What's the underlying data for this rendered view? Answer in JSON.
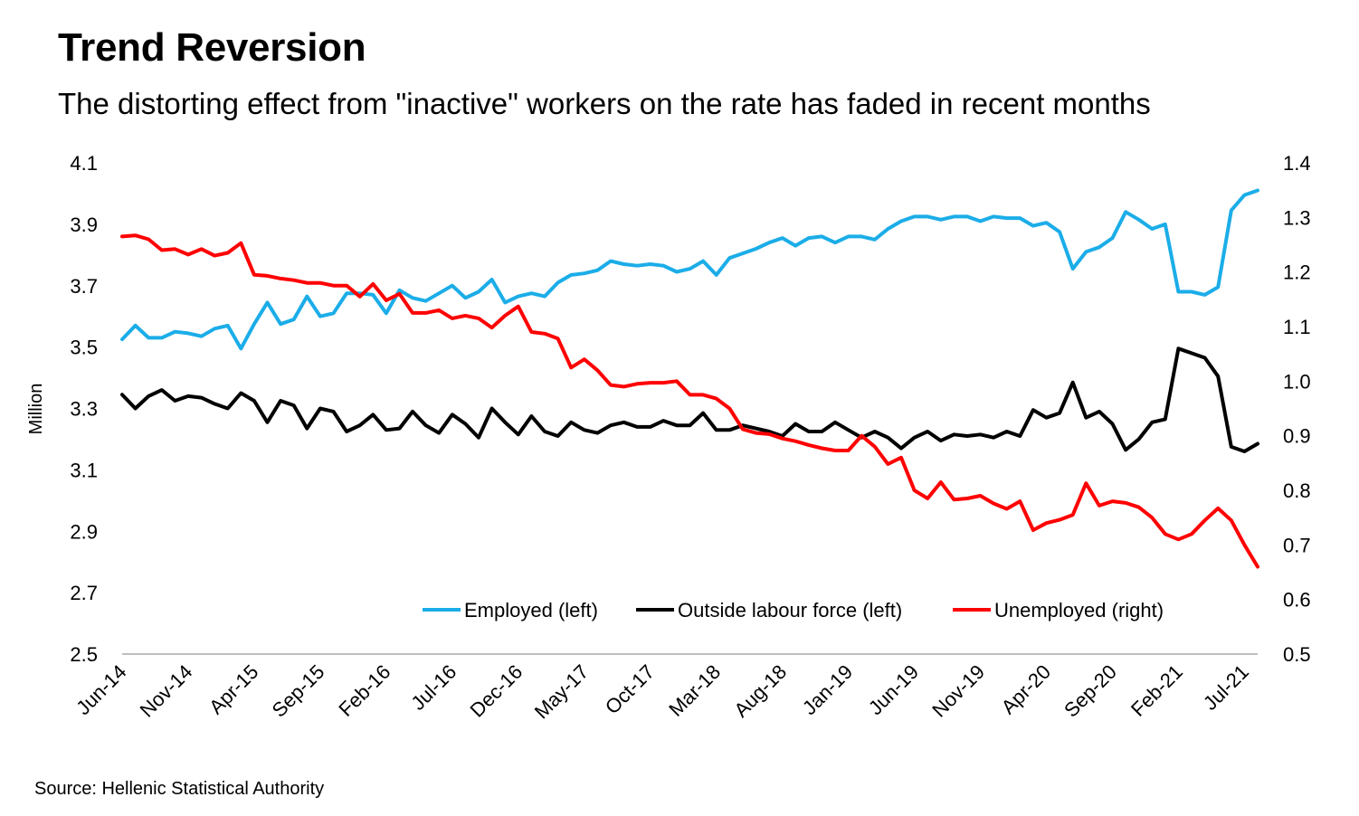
{
  "title": "Trend Reversion",
  "subtitle": "The distorting effect from \"inactive\" workers on the rate has faded in recent months",
  "source": "Source: Hellenic Statistical Authority",
  "colors": {
    "employed": "#1BADE8",
    "outside": "#000000",
    "unemployed": "#FF0000",
    "axis": "#BFBFBF"
  },
  "chart_data": {
    "type": "line",
    "ylabel": "Million",
    "ylim_left": [
      2.5,
      4.1
    ],
    "ylim_right": [
      0.5,
      1.4
    ],
    "yticks_left": [
      "4.1",
      "3.9",
      "3.7",
      "3.5",
      "3.3",
      "3.1",
      "2.9",
      "2.7",
      "2.5"
    ],
    "yticks_right": [
      "1.4",
      "1.3",
      "1.2",
      "1.1",
      "1.0",
      "0.9",
      "0.8",
      "0.7",
      "0.6",
      "0.5"
    ],
    "x_tick_labels": [
      "Jun-14",
      "Nov-14",
      "Apr-15",
      "Sep-15",
      "Feb-16",
      "Jul-16",
      "Dec-16",
      "May-17",
      "Oct-17",
      "Mar-18",
      "Aug-18",
      "Jan-19",
      "Jun-19",
      "Nov-19",
      "Apr-20",
      "Sep-20",
      "Feb-21",
      "Jul-21"
    ],
    "x_start": "Jun-14",
    "x_end": "Jul-21",
    "legend_position": "bottom-right",
    "series": [
      {
        "name": "Employed (left)",
        "axis": "left",
        "values": [
          3.525,
          3.57,
          3.53,
          3.53,
          3.55,
          3.545,
          3.535,
          3.56,
          3.57,
          3.495,
          3.575,
          3.645,
          3.575,
          3.59,
          3.665,
          3.6,
          3.61,
          3.675,
          3.675,
          3.67,
          3.61,
          3.685,
          3.66,
          3.65,
          3.675,
          3.7,
          3.66,
          3.68,
          3.72,
          3.645,
          3.665,
          3.675,
          3.665,
          3.71,
          3.735,
          3.74,
          3.75,
          3.78,
          3.77,
          3.765,
          3.77,
          3.765,
          3.745,
          3.755,
          3.78,
          3.735,
          3.79,
          3.805,
          3.82,
          3.84,
          3.855,
          3.83,
          3.855,
          3.86,
          3.84,
          3.86,
          3.86,
          3.85,
          3.885,
          3.91,
          3.925,
          3.925,
          3.915,
          3.925,
          3.925,
          3.91,
          3.925,
          3.92,
          3.92,
          3.895,
          3.905,
          3.875,
          3.755,
          3.81,
          3.825,
          3.855,
          3.94,
          3.915,
          3.885,
          3.9,
          3.68,
          3.68,
          3.67,
          3.695,
          3.945,
          3.995,
          4.01
        ]
      },
      {
        "name": "Outside labour force (left)",
        "axis": "left",
        "values": [
          3.345,
          3.3,
          3.34,
          3.36,
          3.325,
          3.34,
          3.335,
          3.315,
          3.3,
          3.35,
          3.325,
          3.255,
          3.325,
          3.31,
          3.235,
          3.3,
          3.29,
          3.225,
          3.245,
          3.28,
          3.23,
          3.235,
          3.29,
          3.245,
          3.22,
          3.28,
          3.25,
          3.205,
          3.3,
          3.255,
          3.215,
          3.275,
          3.225,
          3.21,
          3.255,
          3.23,
          3.22,
          3.245,
          3.255,
          3.24,
          3.24,
          3.26,
          3.245,
          3.245,
          3.285,
          3.23,
          3.23,
          3.245,
          3.235,
          3.225,
          3.21,
          3.25,
          3.225,
          3.225,
          3.255,
          3.23,
          3.205,
          3.225,
          3.205,
          3.17,
          3.205,
          3.225,
          3.195,
          3.215,
          3.21,
          3.215,
          3.205,
          3.225,
          3.21,
          3.295,
          3.27,
          3.285,
          3.385,
          3.27,
          3.29,
          3.25,
          3.165,
          3.2,
          3.255,
          3.265,
          3.495,
          3.48,
          3.465,
          3.405,
          3.175,
          3.16,
          3.185
        ]
      },
      {
        "name": "Unemployed (right)",
        "axis": "right",
        "values": [
          1.265,
          1.267,
          1.26,
          1.24,
          1.242,
          1.232,
          1.242,
          1.23,
          1.235,
          1.253,
          1.195,
          1.193,
          1.188,
          1.185,
          1.18,
          1.18,
          1.175,
          1.175,
          1.155,
          1.178,
          1.148,
          1.16,
          1.125,
          1.125,
          1.13,
          1.115,
          1.12,
          1.115,
          1.098,
          1.12,
          1.137,
          1.09,
          1.087,
          1.078,
          1.025,
          1.04,
          1.02,
          0.993,
          0.99,
          0.995,
          0.997,
          0.997,
          1.0,
          0.975,
          0.975,
          0.968,
          0.95,
          0.912,
          0.905,
          0.903,
          0.895,
          0.89,
          0.883,
          0.877,
          0.873,
          0.873,
          0.9,
          0.88,
          0.848,
          0.86,
          0.8,
          0.785,
          0.815,
          0.783,
          0.785,
          0.79,
          0.776,
          0.766,
          0.78,
          0.727,
          0.74,
          0.746,
          0.755,
          0.813,
          0.772,
          0.78,
          0.777,
          0.769,
          0.75,
          0.72,
          0.71,
          0.72,
          0.745,
          0.767,
          0.745,
          0.7,
          0.66
        ]
      }
    ]
  }
}
